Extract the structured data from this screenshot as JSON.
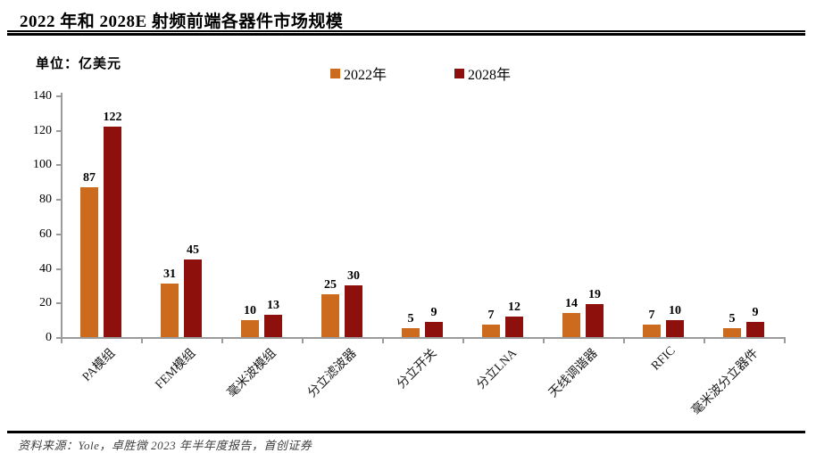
{
  "header": {
    "title": "2022 年和 2028E 射频前端各器件市场规模"
  },
  "chart": {
    "unit_label": "单位：亿美元"
  },
  "chart_data": {
    "type": "bar",
    "title": "2022 年和 2028E 射频前端各器件市场规模",
    "unit": "亿美元",
    "categories": [
      "PA模组",
      "FEM模组",
      "毫米波模组",
      "分立滤波器",
      "分立开关",
      "分立LNA",
      "天线调谐器",
      "RFIC",
      "毫米波分立器件"
    ],
    "series": [
      {
        "name": "2022年",
        "color": "#CC6A1E",
        "values": [
          87,
          31,
          10,
          25,
          5,
          7,
          14,
          7,
          5
        ]
      },
      {
        "name": "2028年",
        "color": "#8E100C",
        "values": [
          122,
          45,
          13,
          30,
          9,
          12,
          19,
          10,
          9
        ]
      }
    ],
    "ylim": [
      0,
      140
    ],
    "yticks": [
      0,
      20,
      40,
      60,
      80,
      100,
      120,
      140
    ],
    "grid": false,
    "legend_position": "top",
    "axis_color": "#9b9b9b"
  },
  "footer": {
    "source": "资料来源：Yole，卓胜微 2023 年半年度报告，首创证券"
  }
}
